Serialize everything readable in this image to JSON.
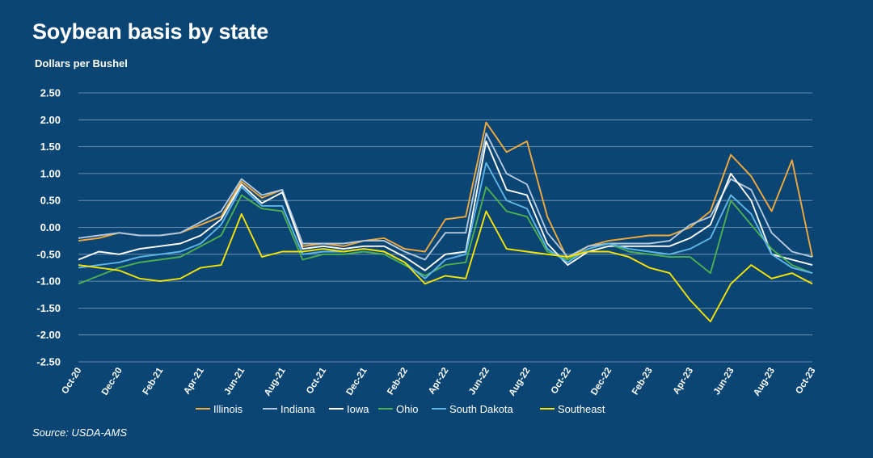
{
  "title": "Soybean basis by state",
  "unit_label": "Dollars per Bushel",
  "source": "Source: USDA-AMS",
  "chart_data": {
    "type": "line",
    "title": "Soybean basis by state",
    "ylabel": "Dollars per Bushel",
    "ylim": [
      -2.5,
      2.5
    ],
    "yticks": [
      "2.50",
      "2.00",
      "1.50",
      "1.00",
      "0.50",
      "0.00",
      "-0.50",
      "-1.00",
      "-1.50",
      "-2.00",
      "-2.50"
    ],
    "ytick_values": [
      2.5,
      2.0,
      1.5,
      1.0,
      0.5,
      0.0,
      -0.5,
      -1.0,
      -1.5,
      -2.0,
      -2.5
    ],
    "xticks": [
      "Oct-20",
      "Dec-20",
      "Feb-21",
      "Apr-21",
      "Jun-21",
      "Aug-21",
      "Oct-21",
      "Dec-21",
      "Feb-22",
      "Apr-22",
      "Jun-22",
      "Aug-22",
      "Oct-22",
      "Dec-22",
      "Feb-23",
      "Apr-23",
      "Jun-23",
      "Aug-23",
      "Oct-23"
    ],
    "x_domain": [
      "2020-10",
      "2023-10"
    ],
    "grid": "horizontal",
    "legend_position": "bottom",
    "series": [
      {
        "name": "Illinois",
        "color": "#f2a93b",
        "points": [
          [
            "2020-10",
            -0.25
          ],
          [
            "2020-11",
            -0.2
          ],
          [
            "2020-12",
            -0.1
          ],
          [
            "2021-01",
            -0.15
          ],
          [
            "2021-02",
            -0.15
          ],
          [
            "2021-03",
            -0.1
          ],
          [
            "2021-04",
            0.05
          ],
          [
            "2021-05",
            0.2
          ],
          [
            "2021-06",
            0.85
          ],
          [
            "2021-07",
            0.55
          ],
          [
            "2021-08",
            0.7
          ],
          [
            "2021-09",
            -0.35
          ],
          [
            "2021-10",
            -0.3
          ],
          [
            "2021-11",
            -0.35
          ],
          [
            "2021-12",
            -0.25
          ],
          [
            "2022-01",
            -0.2
          ],
          [
            "2022-02",
            -0.4
          ],
          [
            "2022-03",
            -0.45
          ],
          [
            "2022-04",
            0.15
          ],
          [
            "2022-05",
            0.2
          ],
          [
            "2022-06",
            1.95
          ],
          [
            "2022-07",
            1.4
          ],
          [
            "2022-08",
            1.6
          ],
          [
            "2022-09",
            0.2
          ],
          [
            "2022-10",
            -0.6
          ],
          [
            "2022-11",
            -0.35
          ],
          [
            "2022-12",
            -0.25
          ],
          [
            "2023-01",
            -0.2
          ],
          [
            "2023-02",
            -0.15
          ],
          [
            "2023-03",
            -0.15
          ],
          [
            "2023-04",
            0.0
          ],
          [
            "2023-05",
            0.3
          ],
          [
            "2023-06",
            1.35
          ],
          [
            "2023-07",
            0.95
          ],
          [
            "2023-08",
            0.3
          ],
          [
            "2023-09",
            1.25
          ],
          [
            "2023-10",
            -0.55
          ]
        ]
      },
      {
        "name": "Indiana",
        "color": "#b3c8dc",
        "points": [
          [
            "2020-10",
            -0.2
          ],
          [
            "2020-11",
            -0.15
          ],
          [
            "2020-12",
            -0.1
          ],
          [
            "2021-01",
            -0.15
          ],
          [
            "2021-02",
            -0.15
          ],
          [
            "2021-03",
            -0.1
          ],
          [
            "2021-04",
            0.1
          ],
          [
            "2021-05",
            0.3
          ],
          [
            "2021-06",
            0.9
          ],
          [
            "2021-07",
            0.6
          ],
          [
            "2021-08",
            0.7
          ],
          [
            "2021-09",
            -0.3
          ],
          [
            "2021-10",
            -0.3
          ],
          [
            "2021-11",
            -0.3
          ],
          [
            "2021-12",
            -0.25
          ],
          [
            "2022-01",
            -0.25
          ],
          [
            "2022-02",
            -0.45
          ],
          [
            "2022-03",
            -0.6
          ],
          [
            "2022-04",
            -0.1
          ],
          [
            "2022-05",
            -0.1
          ],
          [
            "2022-06",
            1.75
          ],
          [
            "2022-07",
            1.0
          ],
          [
            "2022-08",
            0.8
          ],
          [
            "2022-09",
            -0.1
          ],
          [
            "2022-10",
            -0.55
          ],
          [
            "2022-11",
            -0.35
          ],
          [
            "2022-12",
            -0.3
          ],
          [
            "2023-01",
            -0.3
          ],
          [
            "2023-02",
            -0.3
          ],
          [
            "2023-03",
            -0.25
          ],
          [
            "2023-04",
            0.05
          ],
          [
            "2023-05",
            0.2
          ],
          [
            "2023-06",
            0.9
          ],
          [
            "2023-07",
            0.7
          ],
          [
            "2023-08",
            -0.1
          ],
          [
            "2023-09",
            -0.45
          ],
          [
            "2023-10",
            -0.55
          ]
        ]
      },
      {
        "name": "Iowa",
        "color": "#ffffff",
        "points": [
          [
            "2020-10",
            -0.6
          ],
          [
            "2020-11",
            -0.45
          ],
          [
            "2020-12",
            -0.5
          ],
          [
            "2021-01",
            -0.4
          ],
          [
            "2021-02",
            -0.35
          ],
          [
            "2021-03",
            -0.3
          ],
          [
            "2021-04",
            -0.15
          ],
          [
            "2021-05",
            0.15
          ],
          [
            "2021-06",
            0.8
          ],
          [
            "2021-07",
            0.45
          ],
          [
            "2021-08",
            0.65
          ],
          [
            "2021-09",
            -0.4
          ],
          [
            "2021-10",
            -0.35
          ],
          [
            "2021-11",
            -0.4
          ],
          [
            "2021-12",
            -0.35
          ],
          [
            "2022-01",
            -0.35
          ],
          [
            "2022-02",
            -0.55
          ],
          [
            "2022-03",
            -0.8
          ],
          [
            "2022-04",
            -0.5
          ],
          [
            "2022-05",
            -0.45
          ],
          [
            "2022-06",
            1.6
          ],
          [
            "2022-07",
            0.7
          ],
          [
            "2022-08",
            0.6
          ],
          [
            "2022-09",
            -0.3
          ],
          [
            "2022-10",
            -0.7
          ],
          [
            "2022-11",
            -0.45
          ],
          [
            "2022-12",
            -0.35
          ],
          [
            "2023-01",
            -0.35
          ],
          [
            "2023-02",
            -0.35
          ],
          [
            "2023-03",
            -0.35
          ],
          [
            "2023-04",
            -0.2
          ],
          [
            "2023-05",
            0.05
          ],
          [
            "2023-06",
            1.0
          ],
          [
            "2023-07",
            0.5
          ],
          [
            "2023-08",
            -0.5
          ],
          [
            "2023-09",
            -0.6
          ],
          [
            "2023-10",
            -0.7
          ]
        ]
      },
      {
        "name": "Ohio",
        "color": "#4caf50",
        "points": [
          [
            "2020-10",
            -1.05
          ],
          [
            "2020-11",
            -0.9
          ],
          [
            "2020-12",
            -0.75
          ],
          [
            "2021-01",
            -0.65
          ],
          [
            "2021-02",
            -0.6
          ],
          [
            "2021-03",
            -0.55
          ],
          [
            "2021-04",
            -0.35
          ],
          [
            "2021-05",
            -0.15
          ],
          [
            "2021-06",
            0.6
          ],
          [
            "2021-07",
            0.35
          ],
          [
            "2021-08",
            0.3
          ],
          [
            "2021-09",
            -0.6
          ],
          [
            "2021-10",
            -0.5
          ],
          [
            "2021-11",
            -0.5
          ],
          [
            "2021-12",
            -0.45
          ],
          [
            "2022-01",
            -0.5
          ],
          [
            "2022-02",
            -0.7
          ],
          [
            "2022-03",
            -0.9
          ],
          [
            "2022-04",
            -0.7
          ],
          [
            "2022-05",
            -0.65
          ],
          [
            "2022-06",
            0.75
          ],
          [
            "2022-07",
            0.3
          ],
          [
            "2022-08",
            0.2
          ],
          [
            "2022-09",
            -0.45
          ],
          [
            "2022-10",
            -0.6
          ],
          [
            "2022-11",
            -0.4
          ],
          [
            "2022-12",
            -0.3
          ],
          [
            "2023-01",
            -0.45
          ],
          [
            "2023-02",
            -0.5
          ],
          [
            "2023-03",
            -0.55
          ],
          [
            "2023-04",
            -0.55
          ],
          [
            "2023-05",
            -0.85
          ],
          [
            "2023-06",
            0.5
          ],
          [
            "2023-07",
            0.05
          ],
          [
            "2023-08",
            -0.4
          ],
          [
            "2023-09",
            -0.7
          ],
          [
            "2023-10",
            -0.85
          ]
        ]
      },
      {
        "name": "South Dakota",
        "color": "#5fb6e6",
        "points": [
          [
            "2020-10",
            -0.75
          ],
          [
            "2020-11",
            -0.7
          ],
          [
            "2020-12",
            -0.65
          ],
          [
            "2021-01",
            -0.55
          ],
          [
            "2021-02",
            -0.5
          ],
          [
            "2021-03",
            -0.45
          ],
          [
            "2021-04",
            -0.3
          ],
          [
            "2021-05",
            0.05
          ],
          [
            "2021-06",
            0.75
          ],
          [
            "2021-07",
            0.4
          ],
          [
            "2021-08",
            0.4
          ],
          [
            "2021-09",
            -0.5
          ],
          [
            "2021-10",
            -0.45
          ],
          [
            "2021-11",
            -0.45
          ],
          [
            "2021-12",
            -0.4
          ],
          [
            "2022-01",
            -0.45
          ],
          [
            "2022-02",
            -0.65
          ],
          [
            "2022-03",
            -0.95
          ],
          [
            "2022-04",
            -0.6
          ],
          [
            "2022-05",
            -0.5
          ],
          [
            "2022-06",
            1.2
          ],
          [
            "2022-07",
            0.5
          ],
          [
            "2022-08",
            0.35
          ],
          [
            "2022-09",
            -0.4
          ],
          [
            "2022-10",
            -0.65
          ],
          [
            "2022-11",
            -0.4
          ],
          [
            "2022-12",
            -0.3
          ],
          [
            "2023-01",
            -0.4
          ],
          [
            "2023-02",
            -0.45
          ],
          [
            "2023-03",
            -0.5
          ],
          [
            "2023-04",
            -0.4
          ],
          [
            "2023-05",
            -0.2
          ],
          [
            "2023-06",
            0.6
          ],
          [
            "2023-07",
            0.25
          ],
          [
            "2023-08",
            -0.5
          ],
          [
            "2023-09",
            -0.75
          ],
          [
            "2023-10",
            -0.85
          ]
        ]
      },
      {
        "name": "Southeast",
        "color": "#f5e400",
        "points": [
          [
            "2020-10",
            -0.7
          ],
          [
            "2020-11",
            -0.75
          ],
          [
            "2020-12",
            -0.8
          ],
          [
            "2021-01",
            -0.95
          ],
          [
            "2021-02",
            -1.0
          ],
          [
            "2021-03",
            -0.95
          ],
          [
            "2021-04",
            -0.75
          ],
          [
            "2021-05",
            -0.7
          ],
          [
            "2021-06",
            0.25
          ],
          [
            "2021-07",
            -0.55
          ],
          [
            "2021-08",
            -0.45
          ],
          [
            "2021-09",
            -0.45
          ],
          [
            "2021-10",
            -0.4
          ],
          [
            "2021-11",
            -0.45
          ],
          [
            "2021-12",
            -0.4
          ],
          [
            "2022-01",
            -0.45
          ],
          [
            "2022-02",
            -0.65
          ],
          [
            "2022-03",
            -1.05
          ],
          [
            "2022-04",
            -0.9
          ],
          [
            "2022-05",
            -0.95
          ],
          [
            "2022-06",
            0.3
          ],
          [
            "2022-07",
            -0.4
          ],
          [
            "2022-08",
            -0.45
          ],
          [
            "2022-09",
            -0.5
          ],
          [
            "2022-10",
            -0.55
          ],
          [
            "2022-11",
            -0.45
          ],
          [
            "2022-12",
            -0.45
          ],
          [
            "2023-01",
            -0.55
          ],
          [
            "2023-02",
            -0.75
          ],
          [
            "2023-03",
            -0.85
          ],
          [
            "2023-04",
            -1.35
          ],
          [
            "2023-05",
            -1.75
          ],
          [
            "2023-06",
            -1.05
          ],
          [
            "2023-07",
            -0.7
          ],
          [
            "2023-08",
            -0.95
          ],
          [
            "2023-09",
            -0.85
          ],
          [
            "2023-10",
            -1.05
          ]
        ]
      }
    ]
  }
}
